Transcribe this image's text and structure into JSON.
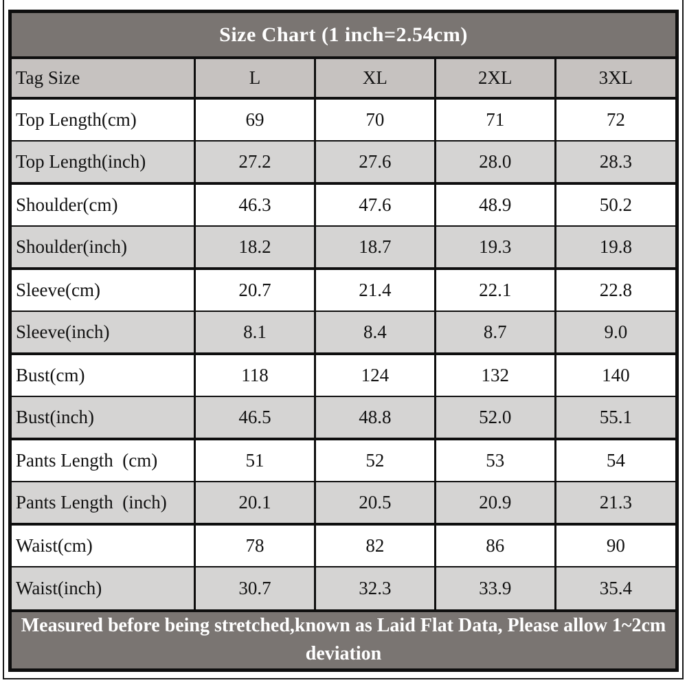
{
  "title": "Size Chart (1 inch=2.54cm)",
  "note": "Measured before being stretched,known as Laid Flat Data, Please allow 1~2cm deviation",
  "colors": {
    "bar_background": "#7a7572",
    "bar_text": "#ffffff",
    "header_row_background": "#c6c2c0",
    "alt_row_background": "#d5d4d3",
    "row_background": "#ffffff",
    "border": "#0e0e0e",
    "cell_text": "#111111"
  },
  "chart_data": {
    "type": "table",
    "title": "Size Chart (1 inch=2.54cm)",
    "columns": [
      "Tag Size",
      "L",
      "XL",
      "2XL",
      "3XL"
    ],
    "rows": [
      {
        "label": "Top Length(cm)",
        "values": [
          "69",
          "70",
          "71",
          "72"
        ]
      },
      {
        "label": "Top Length(inch)",
        "values": [
          "27.2",
          "27.6",
          "28.0",
          "28.3"
        ]
      },
      {
        "label": "Shoulder(cm)",
        "values": [
          "46.3",
          "47.6",
          "48.9",
          "50.2"
        ]
      },
      {
        "label": "Shoulder(inch)",
        "values": [
          "18.2",
          "18.7",
          "19.3",
          "19.8"
        ]
      },
      {
        "label": "Sleeve(cm)",
        "values": [
          "20.7",
          "21.4",
          "22.1",
          "22.8"
        ]
      },
      {
        "label": "Sleeve(inch)",
        "values": [
          "8.1",
          "8.4",
          "8.7",
          "9.0"
        ]
      },
      {
        "label": "Bust(cm)",
        "values": [
          "118",
          "124",
          "132",
          "140"
        ]
      },
      {
        "label": "Bust(inch)",
        "values": [
          "46.5",
          "48.8",
          "52.0",
          "55.1"
        ]
      },
      {
        "label": "Pants Length  (cm)",
        "values": [
          "51",
          "52",
          "53",
          "54"
        ]
      },
      {
        "label": "Pants Length  (inch)",
        "values": [
          "20.1",
          "20.5",
          "20.9",
          "21.3"
        ]
      },
      {
        "label": "Waist(cm)",
        "values": [
          "78",
          "82",
          "86",
          "90"
        ]
      },
      {
        "label": "Waist(inch)",
        "values": [
          "30.7",
          "32.3",
          "33.9",
          "35.4"
        ]
      }
    ],
    "note": "Measured before being stretched,known as Laid Flat Data, Please allow 1~2cm deviation",
    "layout_hints": {
      "grid": true,
      "alternating_rows": true,
      "first_column_left_aligned": true
    }
  }
}
